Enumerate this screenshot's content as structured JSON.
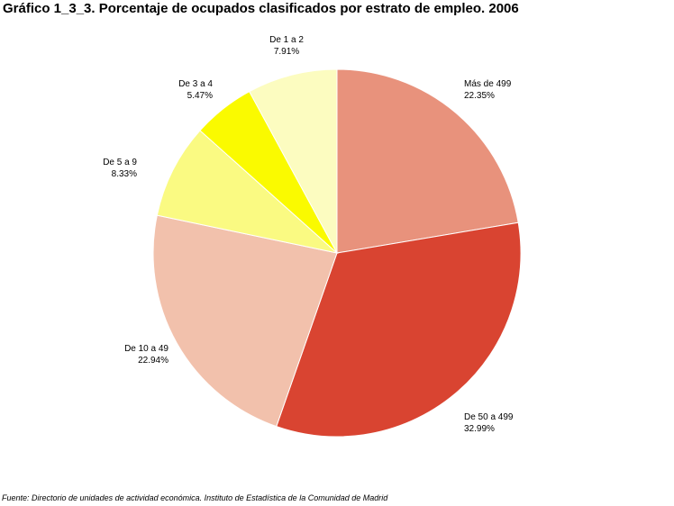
{
  "title": "Gráfico 1_3_3. Porcentaje de ocupados clasificados por estrato de empleo. 2006",
  "source": "Fuente: Directorio de unidades de actividad económica. Instituto de Estadística de la Comunidad de Madrid",
  "chart_data": {
    "type": "pie",
    "title": "Gráfico 1_3_3. Porcentaje de ocupados clasificados por estrato de empleo. 2006",
    "categories": [
      "Más de 499",
      "De 50 a 499",
      "De 10 a 49",
      "De 5 a 9",
      "De 3 a 4",
      "De 1 a 2"
    ],
    "values": [
      22.35,
      32.99,
      22.94,
      8.33,
      5.47,
      7.91
    ],
    "value_labels": [
      "22.35%",
      "32.99%",
      "22.94%",
      "8.33%",
      "5.47%",
      "7.91%"
    ],
    "colors": [
      "#E8927C",
      "#D94431",
      "#F2C1AC",
      "#FAFA82",
      "#FAFA00",
      "#FCFCC0"
    ],
    "start_angle": "12 o'clock",
    "direction": "clockwise",
    "legend": "none"
  }
}
